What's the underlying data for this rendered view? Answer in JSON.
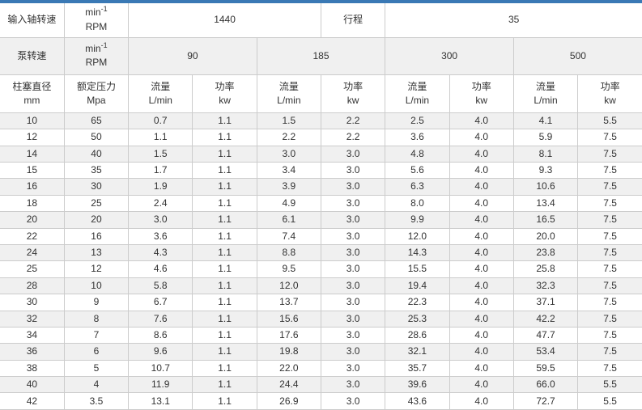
{
  "colors": {
    "accent_bar": "#3a79b5",
    "alt_row_bg": "#f0f0f0",
    "border": "#cccccc",
    "text": "#333333"
  },
  "chart_data": {
    "type": "table",
    "top": {
      "input_speed_label": "输入轴转速",
      "unit_base": "min",
      "unit_sup": "-1",
      "unit_rpm": "RPM",
      "input_speed_value": "1440",
      "stroke_label": "行程",
      "stroke_value": "35",
      "pump_speed_label": "泵转速",
      "pump_speeds": [
        "90",
        "185",
        "300",
        "500"
      ]
    },
    "column_headers": [
      {
        "top": "柱塞直径",
        "bottom": "mm"
      },
      {
        "top": "额定压力",
        "bottom": "Mpa"
      },
      {
        "top": "流量",
        "bottom": "L/min"
      },
      {
        "top": "功率",
        "bottom": "kw"
      },
      {
        "top": "流量",
        "bottom": "L/min"
      },
      {
        "top": "功率",
        "bottom": "kw"
      },
      {
        "top": "流量",
        "bottom": "L/min"
      },
      {
        "top": "功率",
        "bottom": "kw"
      },
      {
        "top": "流量",
        "bottom": "L/min"
      },
      {
        "top": "功率",
        "bottom": "kw"
      }
    ],
    "rows": [
      [
        "10",
        "65",
        "0.7",
        "1.1",
        "1.5",
        "2.2",
        "2.5",
        "4.0",
        "4.1",
        "5.5"
      ],
      [
        "12",
        "50",
        "1.1",
        "1.1",
        "2.2",
        "2.2",
        "3.6",
        "4.0",
        "5.9",
        "7.5"
      ],
      [
        "14",
        "40",
        "1.5",
        "1.1",
        "3.0",
        "3.0",
        "4.8",
        "4.0",
        "8.1",
        "7.5"
      ],
      [
        "15",
        "35",
        "1.7",
        "1.1",
        "3.4",
        "3.0",
        "5.6",
        "4.0",
        "9.3",
        "7.5"
      ],
      [
        "16",
        "30",
        "1.9",
        "1.1",
        "3.9",
        "3.0",
        "6.3",
        "4.0",
        "10.6",
        "7.5"
      ],
      [
        "18",
        "25",
        "2.4",
        "1.1",
        "4.9",
        "3.0",
        "8.0",
        "4.0",
        "13.4",
        "7.5"
      ],
      [
        "20",
        "20",
        "3.0",
        "1.1",
        "6.1",
        "3.0",
        "9.9",
        "4.0",
        "16.5",
        "7.5"
      ],
      [
        "22",
        "16",
        "3.6",
        "1.1",
        "7.4",
        "3.0",
        "12.0",
        "4.0",
        "20.0",
        "7.5"
      ],
      [
        "24",
        "13",
        "4.3",
        "1.1",
        "8.8",
        "3.0",
        "14.3",
        "4.0",
        "23.8",
        "7.5"
      ],
      [
        "25",
        "12",
        "4.6",
        "1.1",
        "9.5",
        "3.0",
        "15.5",
        "4.0",
        "25.8",
        "7.5"
      ],
      [
        "28",
        "10",
        "5.8",
        "1.1",
        "12.0",
        "3.0",
        "19.4",
        "4.0",
        "32.3",
        "7.5"
      ],
      [
        "30",
        "9",
        "6.7",
        "1.1",
        "13.7",
        "3.0",
        "22.3",
        "4.0",
        "37.1",
        "7.5"
      ],
      [
        "32",
        "8",
        "7.6",
        "1.1",
        "15.6",
        "3.0",
        "25.3",
        "4.0",
        "42.2",
        "7.5"
      ],
      [
        "34",
        "7",
        "8.6",
        "1.1",
        "17.6",
        "3.0",
        "28.6",
        "4.0",
        "47.7",
        "7.5"
      ],
      [
        "36",
        "6",
        "9.6",
        "1.1",
        "19.8",
        "3.0",
        "32.1",
        "4.0",
        "53.4",
        "7.5"
      ],
      [
        "38",
        "5",
        "10.7",
        "1.1",
        "22.0",
        "3.0",
        "35.7",
        "4.0",
        "59.5",
        "7.5"
      ],
      [
        "40",
        "4",
        "11.9",
        "1.1",
        "24.4",
        "3.0",
        "39.6",
        "4.0",
        "66.0",
        "5.5"
      ],
      [
        "42",
        "3.5",
        "13.1",
        "1.1",
        "26.9",
        "3.0",
        "43.6",
        "4.0",
        "72.7",
        "5.5"
      ]
    ]
  }
}
